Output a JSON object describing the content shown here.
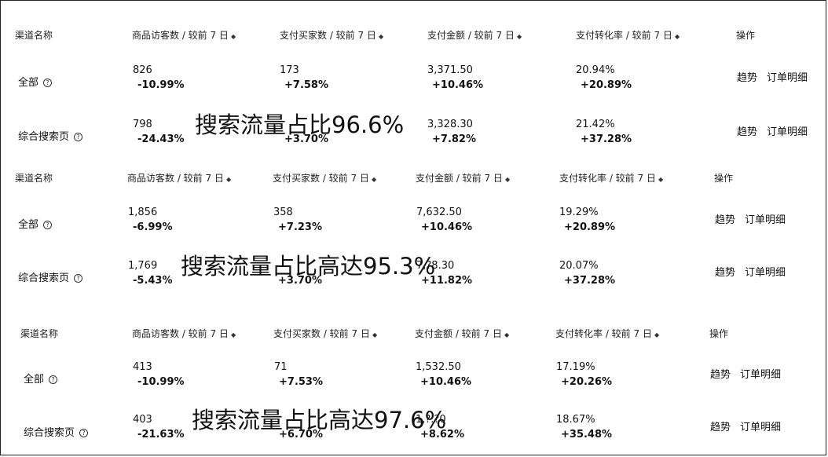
{
  "sections": [
    {
      "headers": {
        "channel": "渠道名称",
        "visitors": "商品访客数 / 较前 7 日",
        "buyers": "支付买家数 / 较前 7 日",
        "amount": "支付金额 / 较前 7 日",
        "conversion": "支付转化率 / 较前 7 日",
        "action": "操作"
      },
      "rows": [
        {
          "channel": "全部",
          "visitors": "826",
          "visitors_chg": "-10.99%",
          "buyers": "173",
          "buyers_chg": "+7.58%",
          "amount": "3,371.50",
          "amount_chg": "+10.46%",
          "conversion": "20.94%",
          "conversion_chg": "+20.89%",
          "trend": "趋势",
          "detail": "订单明细"
        },
        {
          "channel": "综合搜索页",
          "visitors": "798",
          "visitors_chg": "-24.43%",
          "buyers": "",
          "buyers_chg": "+3.70%",
          "amount": "3,328.30",
          "amount_chg": "+7.82%",
          "conversion": "21.42%",
          "conversion_chg": "+37.28%",
          "trend": "趋势",
          "detail": "订单明细"
        }
      ],
      "overlay": "搜索流量占比96.6%"
    },
    {
      "headers": {
        "channel": "渠道名称",
        "visitors": "商品访客数 / 较前 7 日",
        "buyers": "支付买家数 / 较前 7 日",
        "amount": "支付金额 / 较前 7 日",
        "conversion": "支付转化率 / 较前 7 日",
        "action": "操作"
      },
      "rows": [
        {
          "channel": "全部",
          "visitors": "1,856",
          "visitors_chg": "-6.99%",
          "buyers": "358",
          "buyers_chg": "+7.23%",
          "amount": "7,632.50",
          "amount_chg": "+10.46%",
          "conversion": "19.29%",
          "conversion_chg": "+20.89%",
          "trend": "趋势",
          "detail": "订单明细"
        },
        {
          "channel": "综合搜索页",
          "visitors": "1,769",
          "visitors_chg": "-5.43%",
          "buyers": "",
          "buyers_chg": "+3.70%",
          "amount": "7,?8.30",
          "amount_chg": "+11.82%",
          "conversion": "20.07%",
          "conversion_chg": "+37.28%",
          "trend": "趋势",
          "detail": "订单明细"
        }
      ],
      "overlay": "搜索流量占比高达95.3%"
    },
    {
      "headers": {
        "channel": "渠道名称",
        "visitors": "商品访客数 / 较前 7 日",
        "buyers": "支付买家数 / 较前 7 日",
        "amount": "支付金额 / 较前 7 日",
        "conversion": "支付转化率 / 较前 7 日",
        "action": "操作"
      },
      "rows": [
        {
          "channel": "全部",
          "visitors": "413",
          "visitors_chg": "-10.99%",
          "buyers": "71",
          "buyers_chg": "+7.53%",
          "amount": "1,532.50",
          "amount_chg": "+10.46%",
          "conversion": "17.19%",
          "conversion_chg": "+20.26%",
          "trend": "趋势",
          "detail": "订单明细"
        },
        {
          "channel": "综合搜索页",
          "visitors": "403",
          "visitors_chg": "-21.63%",
          "buyers": "",
          "buyers_chg": "+6.70%",
          "amount": "1,?.?0",
          "amount_chg": "+8.62%",
          "conversion": "18.67%",
          "conversion_chg": "+35.48%",
          "trend": "趋势",
          "detail": "订单明细"
        }
      ],
      "overlay": "搜索流量占比高达97.6%"
    }
  ],
  "icons": {
    "sort": "sort-icon",
    "help": "help-circle-icon"
  }
}
